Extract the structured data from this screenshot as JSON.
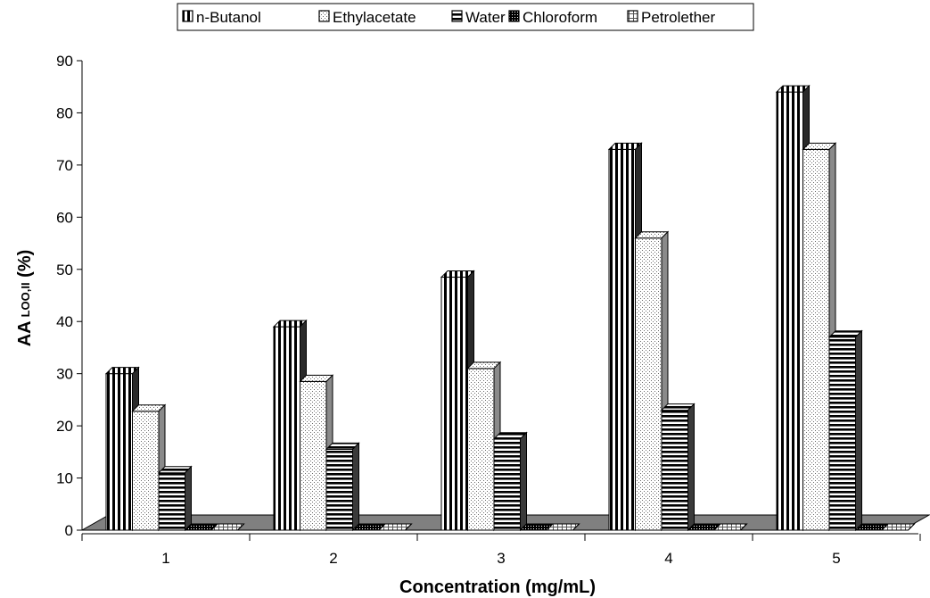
{
  "chart_data": {
    "type": "bar",
    "subtype": "3d-clustered-column",
    "title": "",
    "xlabel": "Concentration (mg/mL)",
    "ylabel_main": "AA",
    "ylabel_sub": "LOO,II",
    "ylabel_suffix": " (%)",
    "categories": [
      "1",
      "2",
      "3",
      "4",
      "5"
    ],
    "ylim": [
      0,
      90
    ],
    "yticks": [
      "0",
      "10",
      "20",
      "30",
      "40",
      "50",
      "60",
      "70",
      "80",
      "90"
    ],
    "grid": false,
    "legend_position": "top",
    "series": [
      {
        "name": "n-Butanol",
        "pattern": "vertical-stripes",
        "values": [
          30,
          39,
          48.5,
          73,
          84
        ]
      },
      {
        "name": "Ethylacetate",
        "pattern": "dots",
        "values": [
          22.8,
          28.5,
          31,
          56,
          73
        ]
      },
      {
        "name": "Water",
        "pattern": "horizontal-stripes",
        "values": [
          11,
          15.5,
          17.5,
          23,
          37
        ]
      },
      {
        "name": "Chloroform",
        "pattern": "dense-black",
        "values": [
          0,
          0,
          0,
          0,
          0
        ]
      },
      {
        "name": "Petrolether",
        "pattern": "light-grid",
        "values": [
          0,
          0,
          0,
          0,
          0
        ]
      }
    ]
  }
}
